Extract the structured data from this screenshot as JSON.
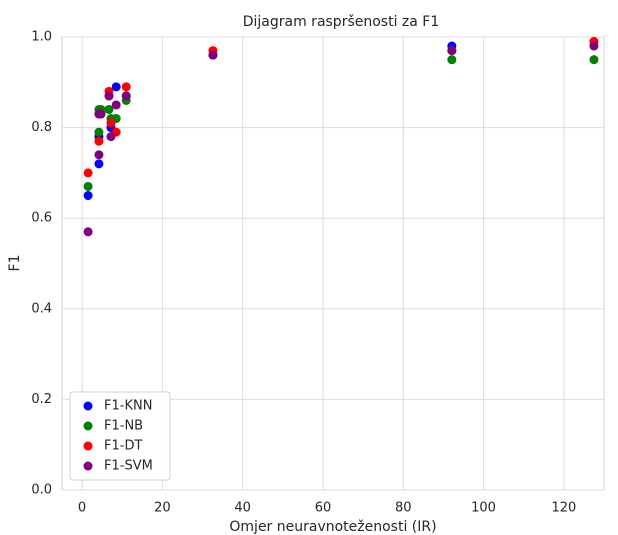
{
  "chart_data": {
    "type": "scatter",
    "title": "Dijagram raspršenosti za F1",
    "xlabel": "Omjer neuravnoteženosti (IR)",
    "ylabel": "F1",
    "xlim": [
      -5,
      130
    ],
    "ylim": [
      0,
      1
    ],
    "xticks": [
      0,
      20,
      40,
      60,
      80,
      100,
      120
    ],
    "yticks": [
      {
        "value": 0,
        "label": "0.0"
      },
      {
        "value": 0.2,
        "label": "0.2"
      },
      {
        "value": 0.4,
        "label": "0.4"
      },
      {
        "value": 0.6,
        "label": "0.6"
      },
      {
        "value": 0.8,
        "label": "0.8"
      },
      {
        "value": 1,
        "label": "1.0"
      }
    ],
    "grid": true,
    "legend": "lower left",
    "series": [
      {
        "name": "F1-KNN",
        "color": "#0000ff",
        "x": [
          1.5,
          4.2,
          4.2,
          4.7,
          6.7,
          7.2,
          8.5,
          11,
          32.6,
          92.1,
          127.5
        ],
        "values": [
          0.65,
          0.72,
          0.78,
          0.83,
          0.87,
          0.8,
          0.89,
          0.87,
          0.96,
          0.98,
          0.99
        ]
      },
      {
        "name": "F1-NB",
        "color": "#008000",
        "x": [
          1.5,
          4.2,
          4.2,
          4.7,
          6.7,
          7.2,
          8.5,
          11,
          32.6,
          92.1,
          127.5
        ],
        "values": [
          0.67,
          0.79,
          0.84,
          0.84,
          0.84,
          0.82,
          0.82,
          0.86,
          0.96,
          0.95,
          0.95
        ]
      },
      {
        "name": "F1-DT",
        "color": "#ff0000",
        "x": [
          1.5,
          4.2,
          4.2,
          4.7,
          6.7,
          7.2,
          8.5,
          11,
          32.6,
          92.1,
          127.5
        ],
        "values": [
          0.7,
          0.77,
          0.83,
          0.83,
          0.88,
          0.81,
          0.79,
          0.89,
          0.97,
          0.97,
          0.99
        ]
      },
      {
        "name": "F1-SVM",
        "color": "#800080",
        "x": [
          1.5,
          4.2,
          4.2,
          4.7,
          6.7,
          7.2,
          8.5,
          11,
          32.6,
          92.1,
          127.5
        ],
        "values": [
          0.57,
          0.74,
          0.83,
          0.83,
          0.87,
          0.78,
          0.85,
          0.87,
          0.96,
          0.97,
          0.98
        ]
      }
    ]
  }
}
